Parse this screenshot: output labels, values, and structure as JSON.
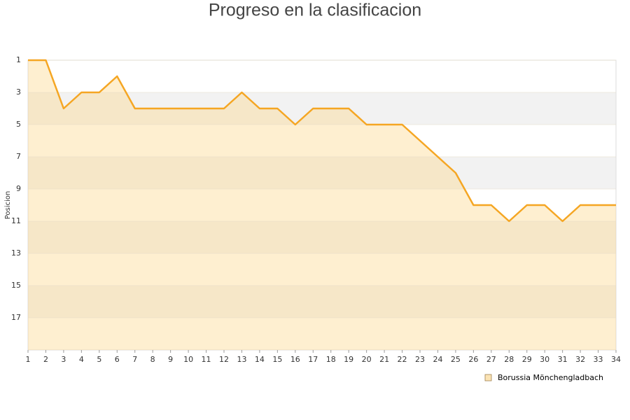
{
  "chart_data": {
    "type": "area-line",
    "title": "Progreso en la clasificacion",
    "y_label": "Posicion",
    "x": [
      1,
      2,
      3,
      4,
      5,
      6,
      7,
      8,
      9,
      10,
      11,
      12,
      13,
      14,
      15,
      16,
      17,
      18,
      19,
      20,
      21,
      22,
      23,
      24,
      25,
      26,
      27,
      28,
      29,
      30,
      31,
      32,
      33,
      34
    ],
    "series": [
      {
        "name": "Borussia Mönchengladbach",
        "color": "#f5a623",
        "values": [
          1,
          1,
          4,
          3,
          3,
          2,
          4,
          4,
          4,
          4,
          4,
          4,
          3,
          4,
          4,
          5,
          4,
          4,
          4,
          5,
          5,
          5,
          6,
          7,
          8,
          10,
          10,
          11,
          10,
          10,
          11,
          10,
          10,
          10
        ]
      }
    ],
    "xlim": [
      1,
      34
    ],
    "xticks": [
      1,
      2,
      3,
      4,
      5,
      6,
      7,
      8,
      9,
      10,
      11,
      12,
      13,
      14,
      15,
      16,
      17,
      18,
      19,
      20,
      21,
      22,
      23,
      24,
      25,
      26,
      27,
      28,
      29,
      30,
      31,
      32,
      33,
      34
    ],
    "ylim": [
      1,
      19
    ],
    "yticks": [
      1,
      3,
      5,
      7,
      9,
      11,
      13,
      15,
      17
    ],
    "y_inverted": true,
    "grid": true,
    "legend": "bottom-right"
  }
}
